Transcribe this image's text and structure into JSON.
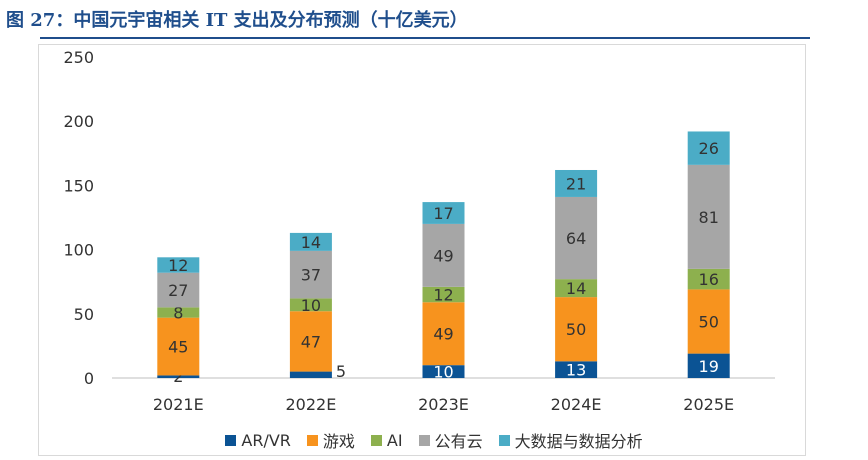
{
  "figure": {
    "title": "图 27：中国元宇宙相关 IT 支出及分布预测（十亿美元）"
  },
  "chart_data": {
    "type": "bar",
    "stacked": true,
    "categories": [
      "2021E",
      "2022E",
      "2023E",
      "2024E",
      "2025E"
    ],
    "ylim": [
      0,
      250
    ],
    "yticks": [
      0,
      50,
      100,
      150,
      200,
      250
    ],
    "grid": false,
    "legend_position": "bottom",
    "series": [
      {
        "name": "AR/VR",
        "values": [
          2,
          5,
          10,
          13,
          19
        ],
        "color": "#0b5394"
      },
      {
        "name": "游戏",
        "values": [
          45,
          47,
          49,
          50,
          50
        ],
        "color": "#f7931e"
      },
      {
        "name": "AI",
        "values": [
          8,
          10,
          12,
          14,
          16
        ],
        "color": "#8db04e"
      },
      {
        "name": "公有云",
        "values": [
          27,
          37,
          49,
          64,
          81
        ],
        "color": "#a6a6a6"
      },
      {
        "name": "大数据与数据分析",
        "values": [
          12,
          14,
          17,
          21,
          26
        ],
        "color": "#4bacc6"
      }
    ]
  }
}
